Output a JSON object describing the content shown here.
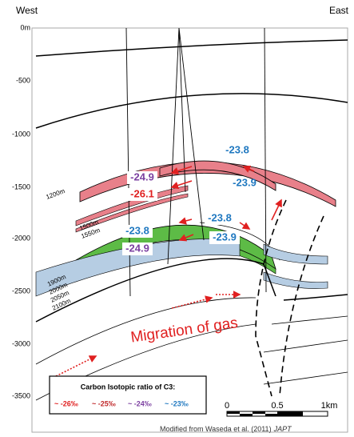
{
  "header": {
    "west": "West",
    "east": "East"
  },
  "depth_axis": {
    "labels": [
      "0m",
      "-500",
      "-1000",
      "-1500",
      "-2000",
      "-2500",
      "-3000",
      "-3500"
    ]
  },
  "well_depths": [
    "1200m",
    "1500m",
    "1550m",
    "1900m",
    "2000m",
    "2050m",
    "2100m"
  ],
  "isotope_labels": [
    "-23.8",
    "-24.9",
    "-26.1",
    "-23.9",
    "-23.8",
    "-23.8",
    "-24.9",
    "-23.9"
  ],
  "annotation": "Migration of gas",
  "legend": {
    "title": "Carbon Isotopic ratio of C3:",
    "items": [
      "~ -26‰",
      "~ -25‰",
      "~ -24‰",
      "~ -23‰"
    ]
  },
  "scale_bar": {
    "labels": [
      "0",
      "0.5",
      "1km"
    ]
  },
  "credit": {
    "text": "Modified from Waseda et al. (2011)",
    "journal": "JAPT"
  }
}
